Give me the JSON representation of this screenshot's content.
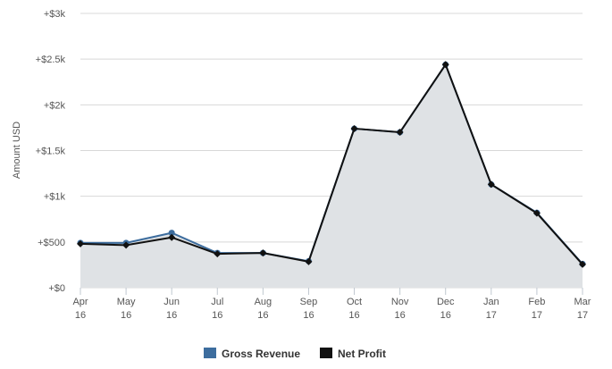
{
  "chart_data": {
    "type": "area",
    "categories": [
      [
        "Apr",
        "16"
      ],
      [
        "May",
        "16"
      ],
      [
        "Jun",
        "16"
      ],
      [
        "Jul",
        "16"
      ],
      [
        "Aug",
        "16"
      ],
      [
        "Sep",
        "16"
      ],
      [
        "Oct",
        "16"
      ],
      [
        "Nov",
        "16"
      ],
      [
        "Dec",
        "16"
      ],
      [
        "Jan",
        "17"
      ],
      [
        "Feb",
        "17"
      ],
      [
        "Mar",
        "17"
      ]
    ],
    "ylabel": "Amount USD",
    "ylim": [
      0,
      3000
    ],
    "yticks": [
      0,
      500,
      1000,
      1500,
      2000,
      2500,
      3000
    ],
    "ytick_labels": [
      "+$0",
      "+$500",
      "+$1k",
      "+$1.5k",
      "+$2k",
      "+$2.5k",
      "+$3k"
    ],
    "grid": true,
    "legend_position": "bottom-center",
    "series": [
      {
        "name": "Gross Revenue",
        "color": "#3d6d9e",
        "values": [
          490,
          490,
          600,
          380,
          380,
          290,
          1740,
          1700,
          2440,
          1130,
          820,
          260
        ]
      },
      {
        "name": "Net Profit",
        "color": "#111111",
        "values": [
          480,
          465,
          550,
          370,
          380,
          285,
          1740,
          1700,
          2440,
          1130,
          815,
          255
        ]
      }
    ],
    "fill_color": "#dfe2e5"
  }
}
